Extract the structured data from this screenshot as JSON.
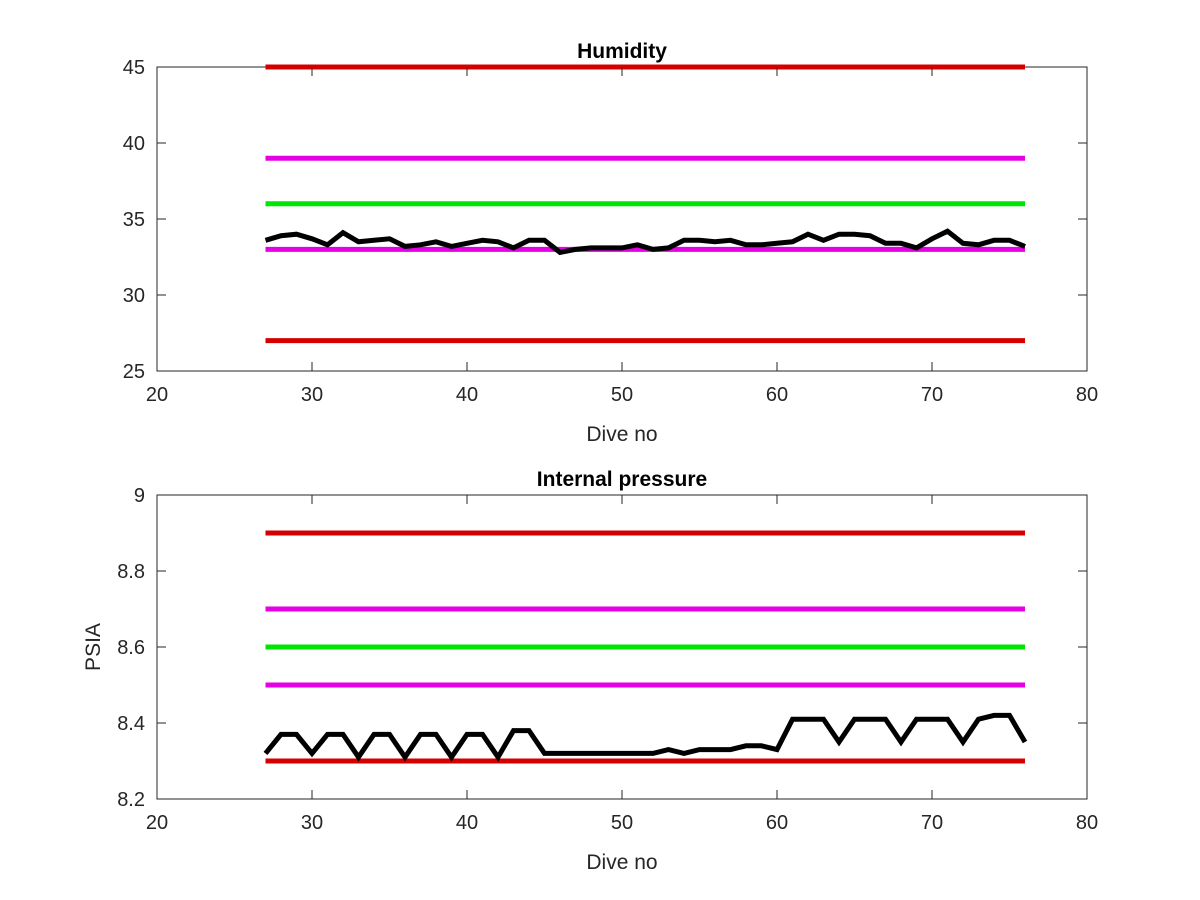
{
  "chart_data": [
    {
      "type": "line",
      "title": "Humidity",
      "xlabel": "Dive no",
      "ylabel": "",
      "xlim": [
        20,
        80
      ],
      "ylim": [
        25,
        45
      ],
      "xticks": [
        20,
        30,
        40,
        50,
        60,
        70,
        80
      ],
      "yticks": [
        25,
        30,
        35,
        40,
        45
      ],
      "grid": false,
      "series": [
        {
          "color": "#d40000",
          "x": [
            27,
            76
          ],
          "y": [
            45,
            45
          ]
        },
        {
          "color": "#e600e6",
          "x": [
            27,
            76
          ],
          "y": [
            39,
            39
          ]
        },
        {
          "color": "#00e600",
          "x": [
            27,
            76
          ],
          "y": [
            36,
            36
          ]
        },
        {
          "color": "#e600e6",
          "x": [
            27,
            76
          ],
          "y": [
            33,
            33
          ]
        },
        {
          "color": "#d40000",
          "x": [
            27,
            76
          ],
          "y": [
            27,
            27
          ]
        },
        {
          "color": "#000000",
          "x": [
            27,
            28,
            29,
            30,
            31,
            32,
            33,
            34,
            35,
            36,
            37,
            38,
            39,
            40,
            41,
            42,
            43,
            44,
            45,
            46,
            47,
            48,
            49,
            50,
            51,
            52,
            53,
            54,
            55,
            56,
            57,
            58,
            59,
            60,
            61,
            62,
            63,
            64,
            65,
            66,
            67,
            68,
            69,
            70,
            71,
            72,
            73,
            74,
            75,
            76
          ],
          "y": [
            33.6,
            33.9,
            34.0,
            33.7,
            33.3,
            34.1,
            33.5,
            33.6,
            33.7,
            33.2,
            33.3,
            33.5,
            33.2,
            33.4,
            33.6,
            33.5,
            33.1,
            33.6,
            33.6,
            32.8,
            33.0,
            33.1,
            33.1,
            33.1,
            33.3,
            33.0,
            33.1,
            33.6,
            33.6,
            33.5,
            33.6,
            33.3,
            33.3,
            33.4,
            33.5,
            34.0,
            33.6,
            34.0,
            34.0,
            33.9,
            33.4,
            33.4,
            33.1,
            33.7,
            34.2,
            33.4,
            33.3,
            33.6,
            33.6,
            33.2
          ]
        }
      ]
    },
    {
      "type": "line",
      "title": "Internal pressure",
      "xlabel": "Dive no",
      "ylabel": "PSIA",
      "xlim": [
        20,
        80
      ],
      "ylim": [
        8.2,
        9
      ],
      "xticks": [
        20,
        30,
        40,
        50,
        60,
        70,
        80
      ],
      "yticks": [
        "8.2",
        "8.4",
        "8.6",
        "8.8",
        "9"
      ],
      "grid": false,
      "series": [
        {
          "color": "#d40000",
          "x": [
            27,
            76
          ],
          "y": [
            8.9,
            8.9
          ]
        },
        {
          "color": "#e600e6",
          "x": [
            27,
            76
          ],
          "y": [
            8.7,
            8.7
          ]
        },
        {
          "color": "#00e600",
          "x": [
            27,
            76
          ],
          "y": [
            8.6,
            8.6
          ]
        },
        {
          "color": "#e600e6",
          "x": [
            27,
            76
          ],
          "y": [
            8.5,
            8.5
          ]
        },
        {
          "color": "#d40000",
          "x": [
            27,
            76
          ],
          "y": [
            8.3,
            8.3
          ]
        },
        {
          "color": "#000000",
          "x": [
            27,
            28,
            29,
            30,
            31,
            32,
            33,
            34,
            35,
            36,
            37,
            38,
            39,
            40,
            41,
            42,
            43,
            44,
            45,
            46,
            47,
            48,
            49,
            50,
            51,
            52,
            53,
            54,
            55,
            56,
            57,
            58,
            59,
            60,
            61,
            62,
            63,
            64,
            65,
            66,
            67,
            68,
            69,
            70,
            71,
            72,
            73,
            74,
            75,
            76
          ],
          "y": [
            8.32,
            8.37,
            8.37,
            8.32,
            8.37,
            8.37,
            8.31,
            8.37,
            8.37,
            8.31,
            8.37,
            8.37,
            8.31,
            8.37,
            8.37,
            8.31,
            8.38,
            8.38,
            8.32,
            8.32,
            8.32,
            8.32,
            8.32,
            8.32,
            8.32,
            8.32,
            8.33,
            8.32,
            8.33,
            8.33,
            8.33,
            8.34,
            8.34,
            8.33,
            8.41,
            8.41,
            8.41,
            8.35,
            8.41,
            8.41,
            8.41,
            8.35,
            8.41,
            8.41,
            8.41,
            8.35,
            8.41,
            8.42,
            8.42,
            8.35
          ]
        }
      ]
    }
  ]
}
